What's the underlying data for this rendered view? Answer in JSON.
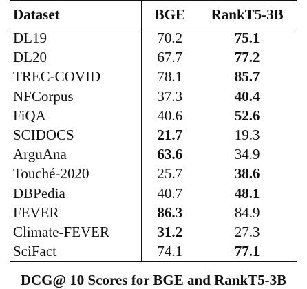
{
  "table": {
    "headers": [
      "Dataset",
      "BGE",
      "RankT5-3B"
    ],
    "rows": [
      {
        "dataset": "DL19",
        "bge": "70.2",
        "rank": "75.1",
        "best": "rank"
      },
      {
        "dataset": "DL20",
        "bge": "67.7",
        "rank": "77.2",
        "best": "rank"
      },
      {
        "dataset": "TREC-COVID",
        "bge": "78.1",
        "rank": "85.7",
        "best": "rank"
      },
      {
        "dataset": "NFCorpus",
        "bge": "37.3",
        "rank": "40.4",
        "best": "rank"
      },
      {
        "dataset": "FiQA",
        "bge": "40.6",
        "rank": "52.6",
        "best": "rank"
      },
      {
        "dataset": "SCIDOCS",
        "bge": "21.7",
        "rank": "19.3",
        "best": "bge"
      },
      {
        "dataset": "ArguAna",
        "bge": "63.6",
        "rank": "34.9",
        "best": "bge"
      },
      {
        "dataset": "Touché-2020",
        "bge": "25.7",
        "rank": "38.6",
        "best": "rank"
      },
      {
        "dataset": "DBPedia",
        "bge": "40.7",
        "rank": "48.1",
        "best": "rank"
      },
      {
        "dataset": "FEVER",
        "bge": "86.3",
        "rank": "84.9",
        "best": "bge"
      },
      {
        "dataset": "Climate-FEVER",
        "bge": "31.2",
        "rank": "27.3",
        "best": "bge"
      },
      {
        "dataset": "SciFact",
        "bge": "74.1",
        "rank": "77.1",
        "best": "rank"
      }
    ]
  },
  "caption": "DCG@ 10 Scores for BGE and RankT5-3B"
}
